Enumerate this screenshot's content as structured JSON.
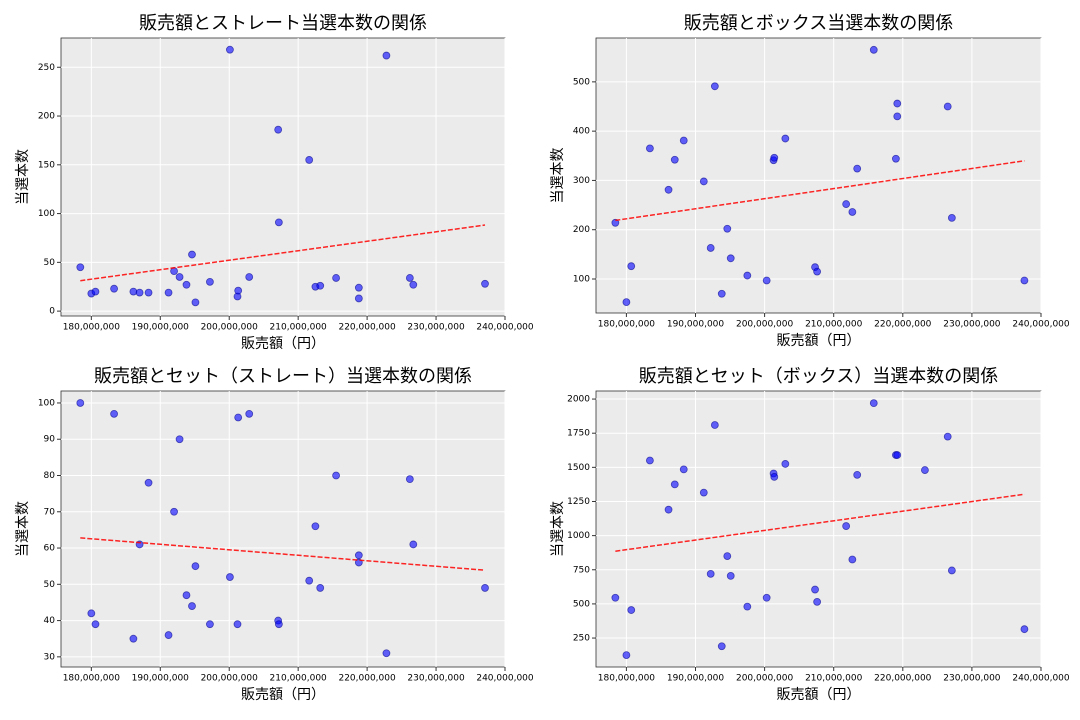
{
  "chart_data": [
    {
      "type": "scatter",
      "title": "販売額とストレート当選本数の関係",
      "x_label": "販売額（円）",
      "y_label": "当選本数",
      "x": [
        178400000,
        180000000,
        180600000,
        183300000,
        186100000,
        187000000,
        188300000,
        191200000,
        192000000,
        192800000,
        193800000,
        194600000,
        195100000,
        197200000,
        200100000,
        201200000,
        201300000,
        202900000,
        207100000,
        207200000,
        211600000,
        212500000,
        213200000,
        215500000,
        218800000,
        218800000,
        222800000,
        226200000,
        226700000,
        237100000
      ],
      "values": [
        45,
        18,
        20,
        23,
        20,
        19,
        19,
        19,
        41,
        35,
        27,
        58,
        9,
        30,
        268,
        15,
        21,
        35,
        186,
        91,
        155,
        25,
        26,
        34,
        24,
        13,
        262,
        34,
        27,
        28
      ],
      "xlim": [
        175600000,
        240000000
      ],
      "ylim": [
        -5,
        280
      ],
      "xticks": [
        {
          "value": 180000000,
          "label": "180,000,000"
        },
        {
          "value": 190000000,
          "label": "190,000,000"
        },
        {
          "value": 200000000,
          "label": "200,000,000"
        },
        {
          "value": 210000000,
          "label": "210,000,000"
        },
        {
          "value": 220000000,
          "label": "220,000,000"
        },
        {
          "value": 230000000,
          "label": "230,000,000"
        },
        {
          "value": 240000000,
          "label": "240,000,000"
        }
      ],
      "yticks": [
        0,
        50,
        100,
        150,
        200,
        250
      ],
      "color": "#0000ff",
      "trend_color": "#ff0000",
      "grid": true
    },
    {
      "type": "scatter",
      "title": "販売額とボックス当選本数の関係",
      "x_label": "販売額（円）",
      "y_label": "当選本数",
      "x": [
        178400000,
        180000000,
        180700000,
        183400000,
        186100000,
        187000000,
        188300000,
        191200000,
        192200000,
        192800000,
        193800000,
        194600000,
        195100000,
        197500000,
        200300000,
        201300000,
        201400000,
        203000000,
        207300000,
        207600000,
        211800000,
        212700000,
        213400000,
        215800000,
        219000000,
        219200000,
        219200000,
        226500000,
        227100000,
        237600000
      ],
      "values": [
        214,
        53,
        126,
        365,
        281,
        342,
        381,
        298,
        163,
        491,
        70,
        202,
        142,
        107,
        97,
        341,
        346,
        385,
        124,
        115,
        252,
        236,
        324,
        565,
        344,
        456,
        430,
        450,
        224,
        97
      ],
      "xlim": [
        175600000,
        240000000
      ],
      "ylim": [
        31,
        589
      ],
      "xticks": [
        {
          "value": 180000000,
          "label": "180,000,000"
        },
        {
          "value": 190000000,
          "label": "190,000,000"
        },
        {
          "value": 200000000,
          "label": "200,000,000"
        },
        {
          "value": 210000000,
          "label": "210,000,000"
        },
        {
          "value": 220000000,
          "label": "220,000,000"
        },
        {
          "value": 230000000,
          "label": "230,000,000"
        },
        {
          "value": 240000000,
          "label": "240,000,000"
        }
      ],
      "yticks": [
        100,
        200,
        300,
        400,
        500
      ],
      "color": "#0000ff",
      "trend_color": "#ff0000",
      "grid": true
    },
    {
      "type": "scatter",
      "title": "販売額とセット（ストレート）当選本数の関係",
      "x_label": "販売額（円）",
      "y_label": "当選本数",
      "x": [
        178400000,
        180000000,
        180600000,
        183300000,
        186100000,
        187000000,
        188300000,
        191200000,
        192000000,
        192800000,
        193800000,
        194600000,
        195100000,
        197200000,
        200100000,
        201200000,
        201300000,
        202900000,
        207100000,
        207200000,
        211600000,
        212500000,
        213200000,
        215500000,
        218800000,
        218800000,
        222800000,
        226200000,
        226700000,
        237100000
      ],
      "values": [
        100,
        42,
        39,
        97,
        35,
        61,
        78,
        36,
        70,
        90,
        47,
        44,
        55,
        39,
        52,
        39,
        96,
        97,
        40,
        39,
        51,
        66,
        49,
        80,
        58,
        56,
        31,
        79,
        61,
        49
      ],
      "xlim": [
        175600000,
        240000000
      ],
      "ylim": [
        27.2,
        103.3
      ],
      "xticks": [
        {
          "value": 180000000,
          "label": "180,000,000"
        },
        {
          "value": 190000000,
          "label": "190,000,000"
        },
        {
          "value": 200000000,
          "label": "200,000,000"
        },
        {
          "value": 210000000,
          "label": "210,000,000"
        },
        {
          "value": 220000000,
          "label": "220,000,000"
        },
        {
          "value": 230000000,
          "label": "230,000,000"
        },
        {
          "value": 240000000,
          "label": "240,000,000"
        }
      ],
      "yticks": [
        30,
        40,
        50,
        60,
        70,
        80,
        90,
        100
      ],
      "color": "#0000ff",
      "trend_color": "#ff0000",
      "grid": true
    },
    {
      "type": "scatter",
      "title": "販売額とセット（ボックス）当選本数の関係",
      "x_label": "販売額（円）",
      "y_label": "当選本数",
      "x": [
        178400000,
        180000000,
        180700000,
        183400000,
        186100000,
        187000000,
        188300000,
        191200000,
        192200000,
        192800000,
        193800000,
        194600000,
        195100000,
        197500000,
        200300000,
        201300000,
        201400000,
        203000000,
        207300000,
        207600000,
        211800000,
        212700000,
        213400000,
        215800000,
        219000000,
        219200000,
        223200000,
        226500000,
        227100000,
        237600000
      ],
      "values": [
        545,
        125,
        455,
        1550,
        1190,
        1375,
        1485,
        1315,
        720,
        1810,
        190,
        850,
        705,
        480,
        545,
        1455,
        1430,
        1525,
        605,
        515,
        1070,
        825,
        1445,
        1970,
        1590,
        1590,
        1480,
        1725,
        745,
        315
      ],
      "xlim": [
        175600000,
        240000000
      ],
      "ylim": [
        38,
        2059
      ],
      "xticks": [
        {
          "value": 180000000,
          "label": "180,000,000"
        },
        {
          "value": 190000000,
          "label": "190,000,000"
        },
        {
          "value": 200000000,
          "label": "200,000,000"
        },
        {
          "value": 210000000,
          "label": "210,000,000"
        },
        {
          "value": 220000000,
          "label": "220,000,000"
        },
        {
          "value": 230000000,
          "label": "230,000,000"
        },
        {
          "value": 240000000,
          "label": "240,000,000"
        }
      ],
      "yticks": [
        250,
        500,
        750,
        1000,
        1250,
        1500,
        1750,
        2000
      ],
      "color": "#0000ff",
      "trend_color": "#ff0000",
      "grid": true
    }
  ]
}
